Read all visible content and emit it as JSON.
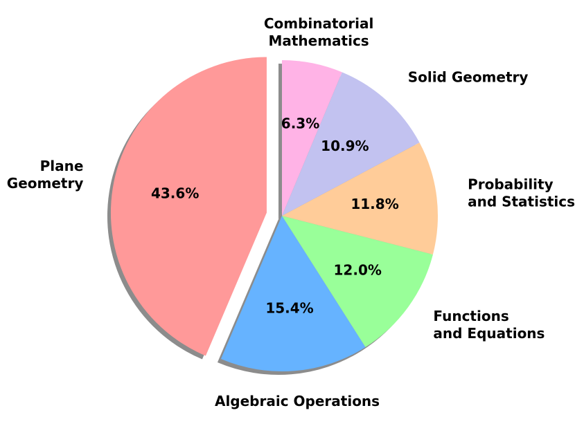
{
  "chart_data": {
    "type": "pie",
    "categories": [
      "Plane\nGeometry",
      "Algebraic Operations",
      "Functions\nand Equations",
      "Probability\nand Statistics",
      "Solid Geometry",
      "Combinatorial\nMathematics"
    ],
    "values": [
      43.6,
      15.4,
      12.0,
      11.8,
      10.9,
      6.3
    ],
    "value_labels": [
      "43.6%",
      "15.4%",
      "12.0%",
      "11.8%",
      "10.9%",
      "6.3%"
    ],
    "colors": [
      "#ff9999",
      "#66b3ff",
      "#99ff99",
      "#ffcc99",
      "#c2c2f0",
      "#ffb3e6"
    ],
    "explode": [
      true,
      false,
      false,
      false,
      false,
      false
    ],
    "shadow": true
  }
}
